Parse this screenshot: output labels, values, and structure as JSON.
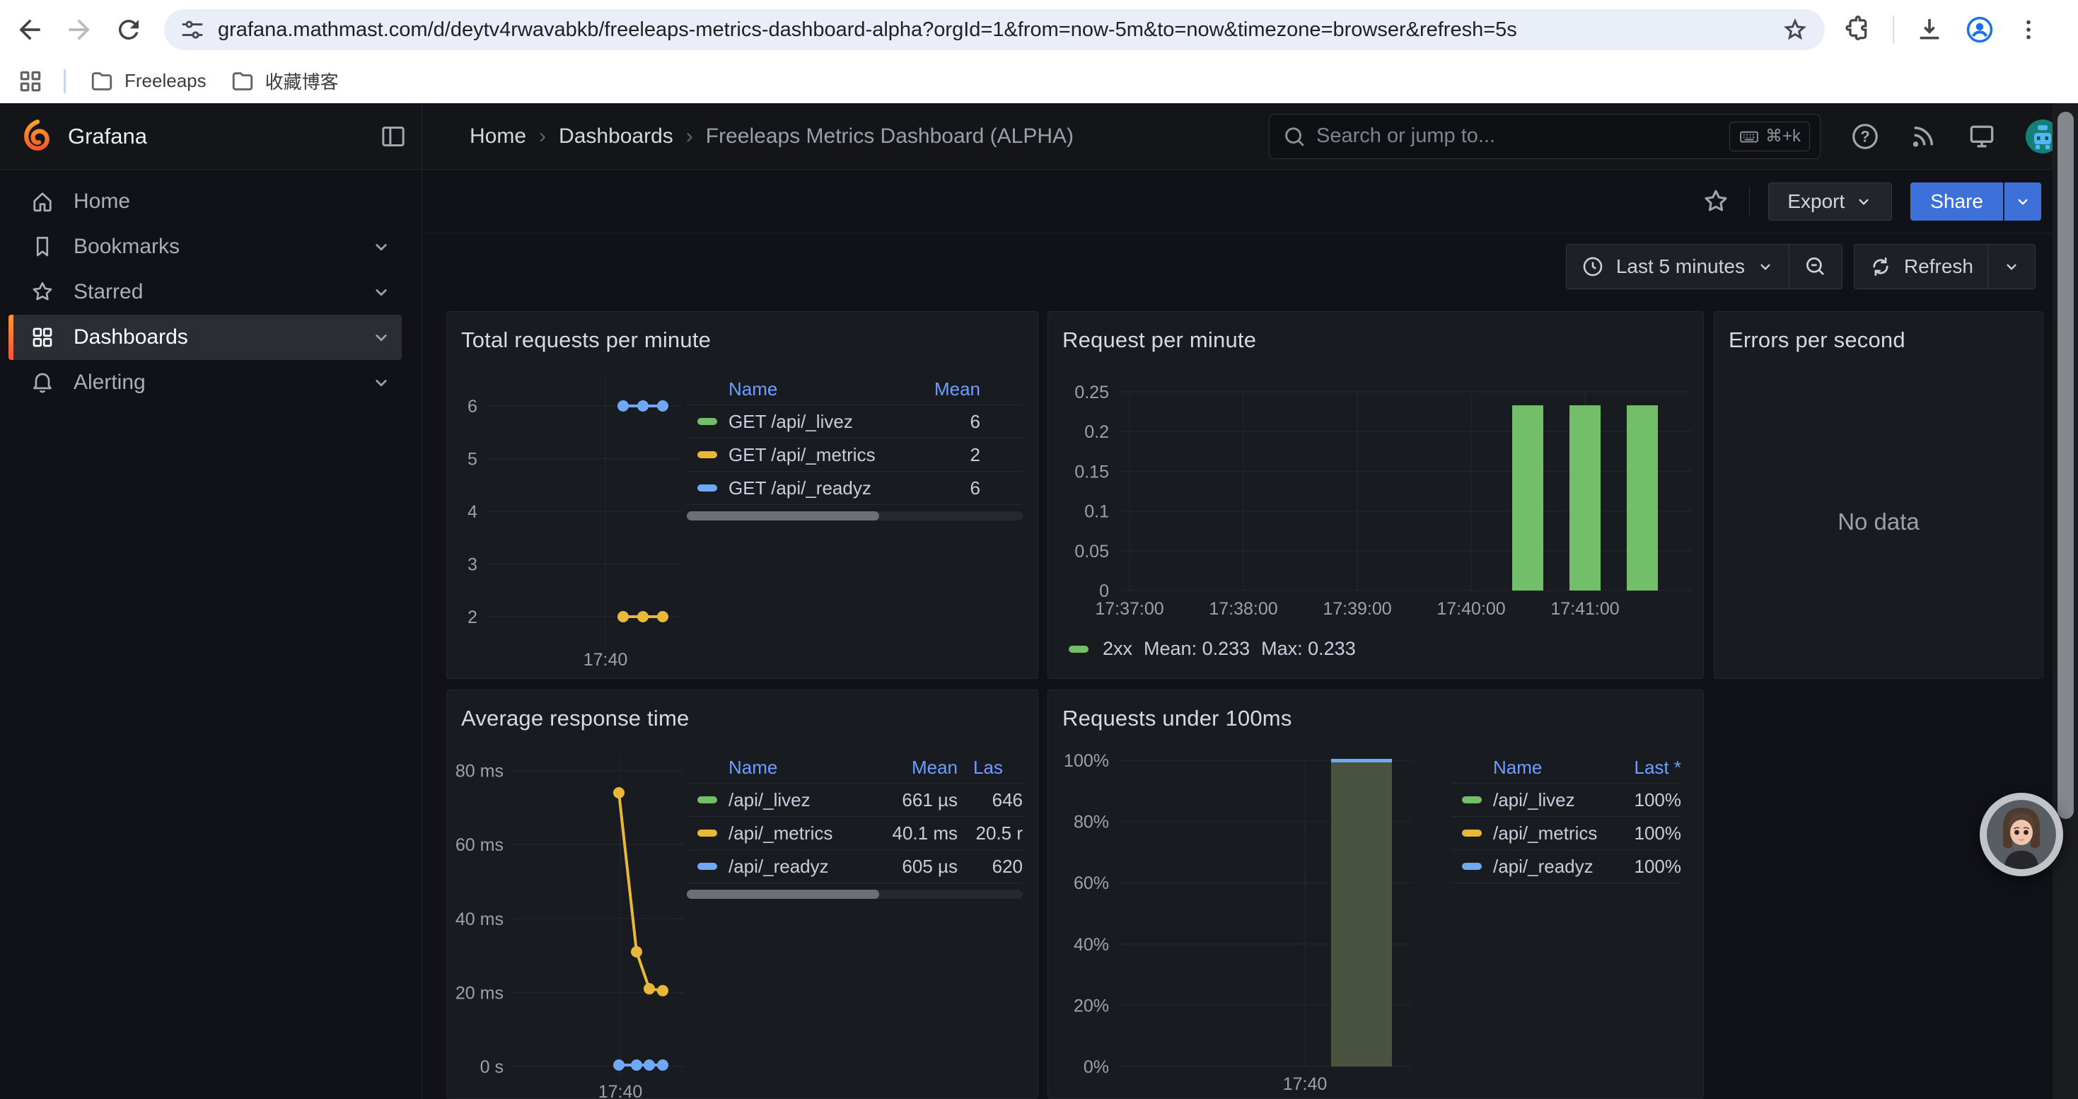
{
  "browser": {
    "url": "grafana.mathmast.com/d/deytv4rwavabkb/freeleaps-metrics-dashboard-alpha?orgId=1&from=now-5m&to=now&timezone=browser&refresh=5s",
    "bookmarks": [
      {
        "label": "Freeleaps"
      },
      {
        "label": "收藏博客"
      }
    ]
  },
  "nav": {
    "brand": "Grafana",
    "breadcrumb": [
      "Home",
      "Dashboards",
      "Freeleaps Metrics Dashboard (ALPHA)"
    ],
    "search_placeholder": "Search or jump to...",
    "search_shortcut": "⌘+k"
  },
  "controls": {
    "export_label": "Export",
    "share_label": "Share"
  },
  "timebar": {
    "range_label": "Last 5 minutes",
    "refresh_label": "Refresh"
  },
  "sidebar": {
    "items": [
      {
        "label": "Home",
        "icon": "home-icon",
        "active": false,
        "expandable": false
      },
      {
        "label": "Bookmarks",
        "icon": "bookmark-icon",
        "active": false,
        "expandable": true
      },
      {
        "label": "Starred",
        "icon": "star-icon",
        "active": false,
        "expandable": true
      },
      {
        "label": "Dashboards",
        "icon": "apps-icon",
        "active": true,
        "expandable": true
      },
      {
        "label": "Alerting",
        "icon": "bell-icon",
        "active": false,
        "expandable": true
      }
    ]
  },
  "colors": {
    "green": "#73bf69",
    "yellow": "#eab839",
    "blue": "#6ea8f7",
    "link_blue": "#6e9fff",
    "share_blue": "#3d71d9",
    "accent_orange": "#ff9532",
    "area_fill": "#4a5340"
  },
  "chart_data": [
    {
      "type": "line",
      "title": "Total requests per minute",
      "y_ticks": [
        6,
        5,
        4,
        3,
        2
      ],
      "ylim": [
        2,
        6
      ],
      "x_ticks": [
        "17:40"
      ],
      "grid": true,
      "legend_position": "right-table",
      "legend_columns": [
        "Name",
        "Mean"
      ],
      "series": [
        {
          "name": "GET /api/_livez",
          "color": "#73bf69",
          "value": 6,
          "mean": 6
        },
        {
          "name": "GET /api/_metrics",
          "color": "#eab839",
          "value": 2,
          "mean": 2
        },
        {
          "name": "GET /api/_readyz",
          "color": "#6ea8f7",
          "value": 6,
          "mean": 6
        }
      ]
    },
    {
      "type": "bar",
      "title": "Request per minute",
      "y_ticks": [
        "0.25",
        "0.2",
        "0.15",
        "0.1",
        "0.05",
        "0"
      ],
      "ylim": [
        0,
        0.25
      ],
      "x_ticks": [
        "17:37:00",
        "17:38:00",
        "17:39:00",
        "17:40:00",
        "17:41:00"
      ],
      "grid": true,
      "legend_position": "bottom",
      "series": [
        {
          "name": "2xx",
          "color": "#73bf69",
          "values": [
            0.233,
            0.233,
            0.233
          ],
          "mean": 0.233,
          "max": 0.233
        }
      ],
      "legend": {
        "name": "2xx",
        "mean_label": "Mean: 0.233",
        "max_label": "Max: 0.233"
      }
    },
    {
      "type": "none",
      "title": "Errors per second",
      "no_data_label": "No data"
    },
    {
      "type": "line",
      "title": "Average response time",
      "y_ticks": [
        "80 ms",
        "60 ms",
        "40 ms",
        "20 ms",
        "0 s"
      ],
      "ylim_ms": [
        0,
        80
      ],
      "x_ticks": [
        "17:40"
      ],
      "grid": true,
      "legend_position": "right-table",
      "legend_columns": [
        "Name",
        "Mean",
        "Las"
      ],
      "series": [
        {
          "name": "/api/_livez",
          "color": "#73bf69",
          "points_ms": [
            0,
            0,
            0,
            0
          ],
          "mean": "661 µs",
          "last": "646"
        },
        {
          "name": "/api/_metrics",
          "color": "#eab839",
          "points_ms": [
            74,
            31,
            21,
            20.5
          ],
          "mean": "40.1 ms",
          "last": "20.5 r"
        },
        {
          "name": "/api/_readyz",
          "color": "#6ea8f7",
          "points_ms": [
            0,
            0,
            0,
            0
          ],
          "mean": "605 µs",
          "last": "620"
        }
      ]
    },
    {
      "type": "area",
      "title": "Requests under 100ms",
      "y_ticks": [
        "100%",
        "80%",
        "60%",
        "40%",
        "20%",
        "0%"
      ],
      "ylim": [
        0,
        100
      ],
      "x_ticks": [
        "17:40"
      ],
      "grid": true,
      "legend_position": "right-table",
      "legend_columns": [
        "Name",
        "Last *"
      ],
      "bar": {
        "value": 100,
        "fill": "#4a5340",
        "cap_color": "#6ea8f7"
      },
      "series": [
        {
          "name": "/api/_livez",
          "color": "#73bf69",
          "last": "100%"
        },
        {
          "name": "/api/_metrics",
          "color": "#eab839",
          "last": "100%"
        },
        {
          "name": "/api/_readyz",
          "color": "#6ea8f7",
          "last": "100%"
        }
      ]
    }
  ]
}
